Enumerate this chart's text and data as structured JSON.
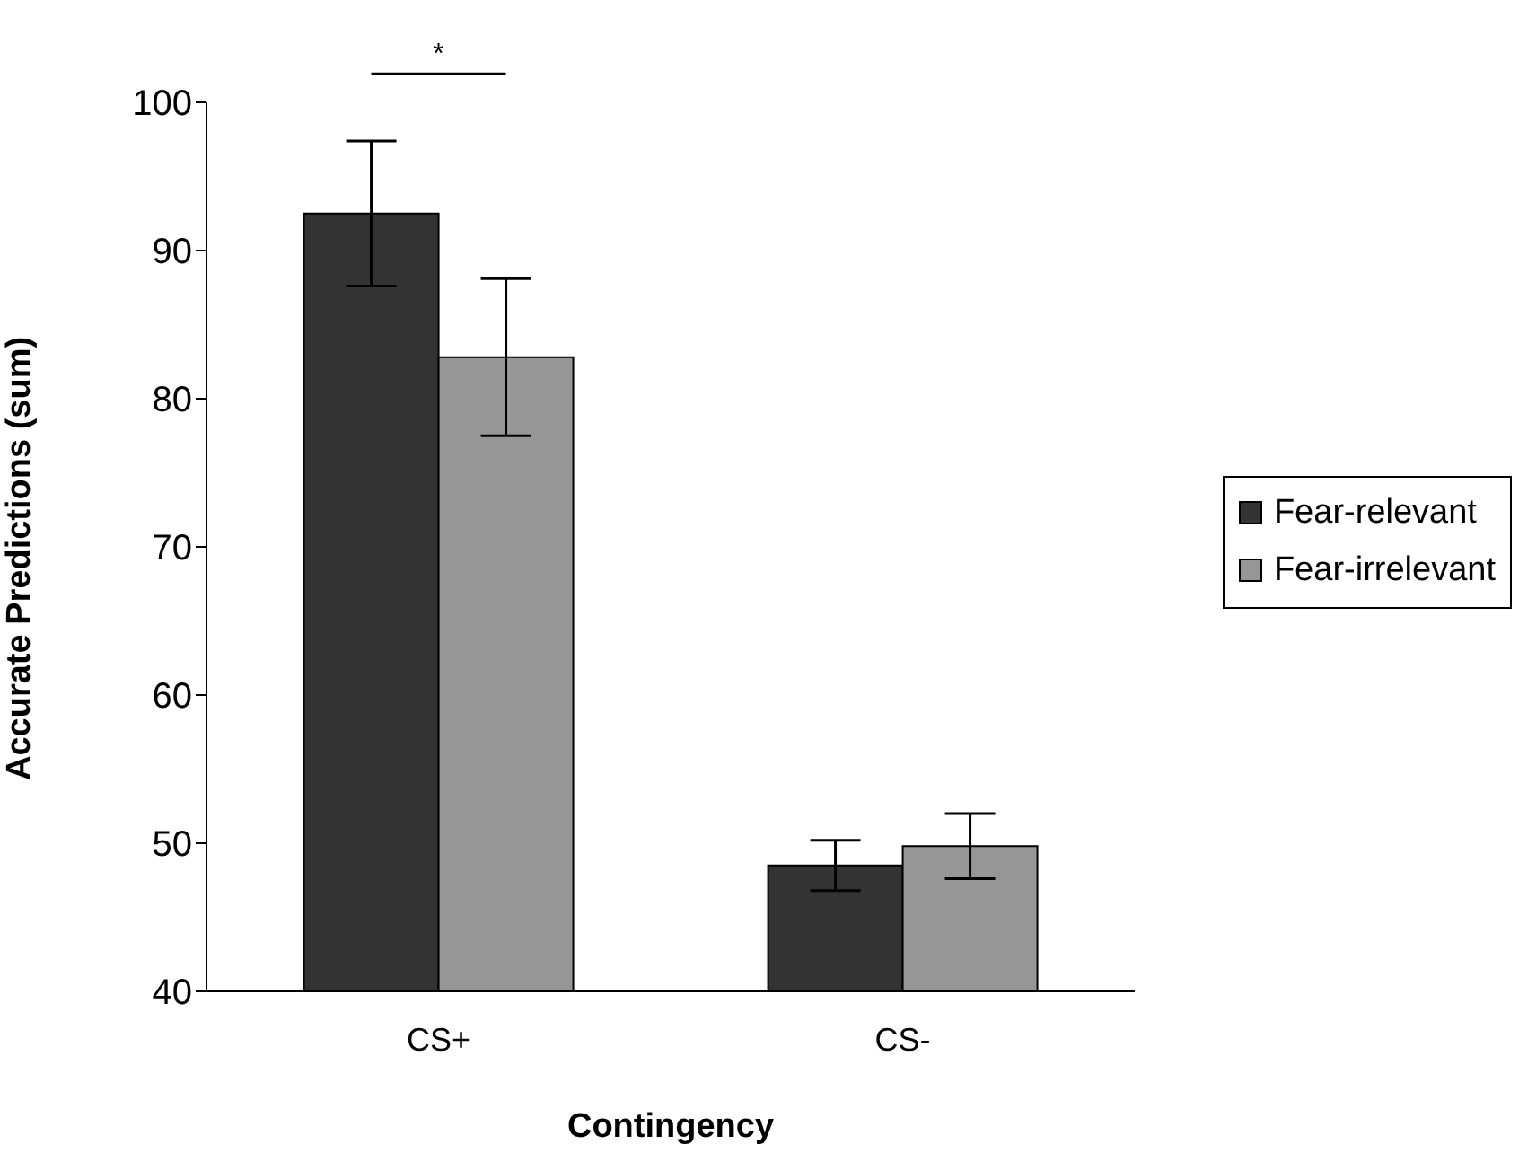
{
  "chart_data": {
    "type": "bar",
    "xlabel": "Contingency",
    "ylabel": "Accurate Predictions (sum)",
    "categories": [
      "CS+",
      "CS-"
    ],
    "series": [
      {
        "name": "Fear-relevant",
        "color": "#333333",
        "values": [
          92.5,
          48.5
        ],
        "errors": [
          4.9,
          1.7
        ]
      },
      {
        "name": "Fear-irrelevant",
        "color": "#969696",
        "values": [
          82.8,
          49.8
        ],
        "errors": [
          5.3,
          2.2
        ]
      }
    ],
    "ylim": [
      40,
      100
    ],
    "yticks": [
      40,
      50,
      60,
      70,
      80,
      90,
      100
    ],
    "legend": "right",
    "annotations": [
      "*"
    ]
  }
}
